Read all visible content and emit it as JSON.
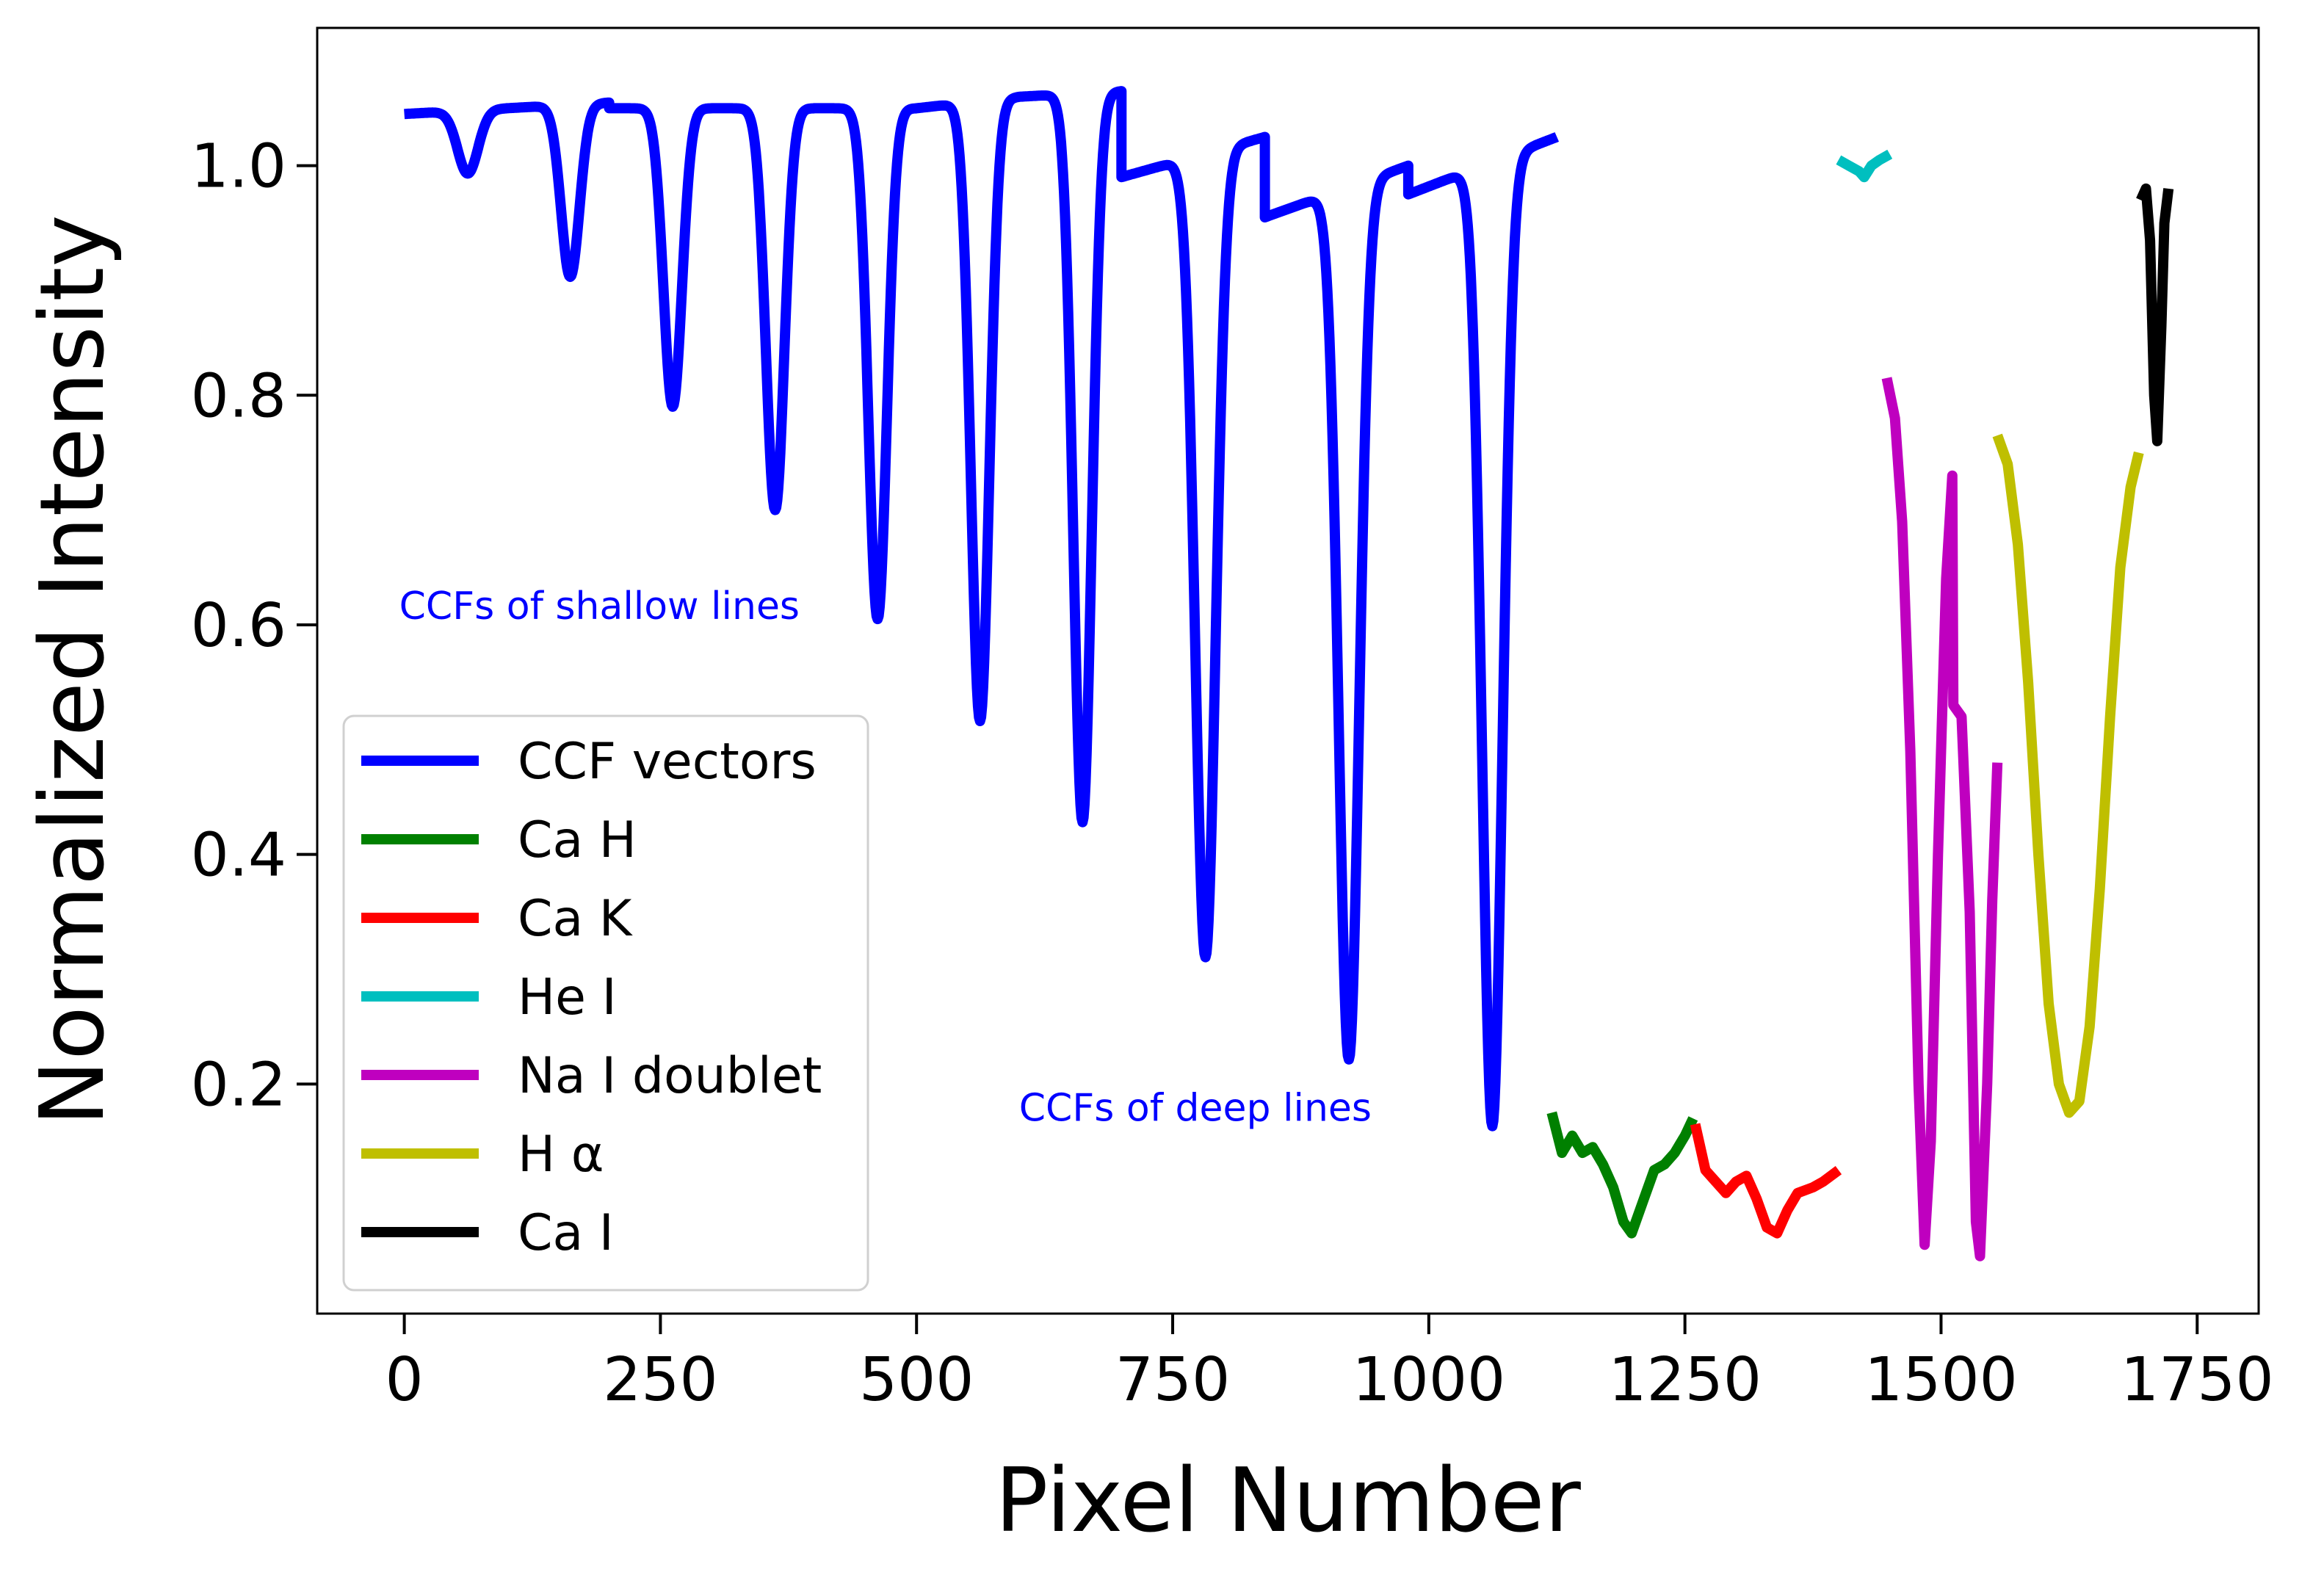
{
  "chart_data": {
    "type": "line",
    "title": "",
    "xlabel": "Pixel Number",
    "ylabel": "Normalized Intensity",
    "xlim": [
      -85,
      1810
    ],
    "ylim": [
      0.0,
      1.12
    ],
    "xticks": [
      0,
      250,
      500,
      750,
      1000,
      1250,
      1500,
      1750
    ],
    "xtick_labels": [
      "0",
      "250",
      "500",
      "750",
      "1000",
      "1250",
      "1500",
      "1750"
    ],
    "yticks": [
      0.2,
      0.4,
      0.6,
      0.8,
      1.0
    ],
    "ytick_labels": [
      "0.2",
      "0.4",
      "0.6",
      "0.8",
      "1.0"
    ],
    "grid": false,
    "legend_position": "lower-left",
    "annotations": [
      {
        "text": "CCFs of shallow lines",
        "x": -5,
        "y": 0.605,
        "color": "#0000ff"
      },
      {
        "text": "CCFs of deep lines",
        "x": 600,
        "y": 0.168,
        "color": "#0000ff"
      }
    ],
    "series": [
      {
        "name": "CCF vectors",
        "legend_label": "CCF vectors",
        "color": "#0000ff",
        "segments": [
          {
            "x_start": 0,
            "x_end": 100,
            "baseline": 1.045,
            "baseline_end": 1.05,
            "depth": 0.055,
            "center": 62,
            "width": 10
          },
          {
            "x_start": 100,
            "x_end": 200,
            "baseline": 1.05,
            "baseline_end": 1.055,
            "depth": 0.15,
            "center": 162,
            "width": 9
          },
          {
            "x_start": 200,
            "x_end": 300,
            "baseline": 1.05,
            "baseline_end": 1.05,
            "depth": 0.26,
            "center": 262,
            "width": 9
          },
          {
            "x_start": 300,
            "x_end": 400,
            "baseline": 1.05,
            "baseline_end": 1.05,
            "depth": 0.35,
            "center": 362,
            "width": 9
          },
          {
            "x_start": 400,
            "x_end": 500,
            "baseline": 1.05,
            "baseline_end": 1.05,
            "depth": 0.445,
            "center": 462,
            "width": 9
          },
          {
            "x_start": 500,
            "x_end": 600,
            "baseline": 1.05,
            "baseline_end": 1.06,
            "depth": 0.54,
            "center": 562,
            "width": 9
          },
          {
            "x_start": 600,
            "x_end": 700,
            "baseline": 1.06,
            "baseline_end": 1.065,
            "depth": 0.635,
            "center": 662,
            "width": 9
          },
          {
            "x_start": 700,
            "x_end": 840,
            "baseline": 0.99,
            "baseline_end": 1.025,
            "depth": 0.7,
            "center": 782,
            "width": 10
          },
          {
            "x_start": 840,
            "x_end": 980,
            "baseline": 0.955,
            "baseline_end": 1.0,
            "depth": 0.76,
            "center": 922,
            "width": 10
          },
          {
            "x_start": 980,
            "x_end": 1125,
            "baseline": 0.975,
            "baseline_end": 1.025,
            "depth": 0.84,
            "center": 1062,
            "width": 10
          }
        ]
      },
      {
        "name": "Ca H",
        "legend_label": "Ca H",
        "color": "#008000",
        "points": [
          [
            1120,
            0.175
          ],
          [
            1130,
            0.14
          ],
          [
            1140,
            0.155
          ],
          [
            1150,
            0.14
          ],
          [
            1160,
            0.145
          ],
          [
            1170,
            0.13
          ],
          [
            1180,
            0.11
          ],
          [
            1190,
            0.08
          ],
          [
            1198,
            0.07
          ],
          [
            1210,
            0.1
          ],
          [
            1220,
            0.125
          ],
          [
            1230,
            0.13
          ],
          [
            1240,
            0.14
          ],
          [
            1250,
            0.155
          ],
          [
            1258,
            0.17
          ]
        ]
      },
      {
        "name": "Ca K",
        "legend_label": "Ca K",
        "color": "#ff0000",
        "points": [
          [
            1260,
            0.165
          ],
          [
            1270,
            0.125
          ],
          [
            1280,
            0.115
          ],
          [
            1290,
            0.105
          ],
          [
            1300,
            0.115
          ],
          [
            1310,
            0.12
          ],
          [
            1320,
            0.1
          ],
          [
            1330,
            0.075
          ],
          [
            1340,
            0.07
          ],
          [
            1350,
            0.09
          ],
          [
            1360,
            0.105
          ],
          [
            1375,
            0.11
          ],
          [
            1385,
            0.115
          ],
          [
            1400,
            0.125
          ]
        ]
      },
      {
        "name": "He I",
        "legend_label": "He I",
        "color": "#00bfbf",
        "points": [
          [
            1400,
            1.005
          ],
          [
            1410,
            1.0
          ],
          [
            1420,
            0.995
          ],
          [
            1425,
            0.99
          ],
          [
            1432,
            1.0
          ],
          [
            1440,
            1.005
          ],
          [
            1450,
            1.01
          ]
        ]
      },
      {
        "name": "Na I doublet",
        "legend_label": "Na I doublet",
        "color": "#bf00bf",
        "points": [
          [
            1447,
            0.815
          ],
          [
            1455,
            0.78
          ],
          [
            1462,
            0.69
          ],
          [
            1470,
            0.49
          ],
          [
            1478,
            0.2
          ],
          [
            1484,
            0.06
          ],
          [
            1490,
            0.15
          ],
          [
            1497,
            0.4
          ],
          [
            1505,
            0.64
          ],
          [
            1511,
            0.73
          ],
          [
            1512,
            0.53
          ],
          [
            1520,
            0.52
          ],
          [
            1528,
            0.35
          ],
          [
            1534,
            0.08
          ],
          [
            1538,
            0.05
          ],
          [
            1545,
            0.2
          ],
          [
            1550,
            0.36
          ],
          [
            1555,
            0.48
          ]
        ]
      },
      {
        "name": "H alpha",
        "legend_label": "H α",
        "color": "#bfbf00",
        "points": [
          [
            1555,
            0.765
          ],
          [
            1565,
            0.74
          ],
          [
            1575,
            0.67
          ],
          [
            1585,
            0.55
          ],
          [
            1595,
            0.4
          ],
          [
            1605,
            0.27
          ],
          [
            1615,
            0.2
          ],
          [
            1625,
            0.175
          ],
          [
            1635,
            0.185
          ],
          [
            1645,
            0.25
          ],
          [
            1655,
            0.37
          ],
          [
            1665,
            0.52
          ],
          [
            1675,
            0.65
          ],
          [
            1685,
            0.72
          ],
          [
            1693,
            0.75
          ]
        ]
      },
      {
        "name": "Ca I",
        "legend_label": "Ca I",
        "color": "#000000",
        "points": [
          [
            1695,
            0.97
          ],
          [
            1700,
            0.98
          ],
          [
            1704,
            0.935
          ],
          [
            1708,
            0.8
          ],
          [
            1711,
            0.76
          ],
          [
            1715,
            0.86
          ],
          [
            1718,
            0.95
          ],
          [
            1722,
            0.98
          ]
        ]
      }
    ]
  }
}
